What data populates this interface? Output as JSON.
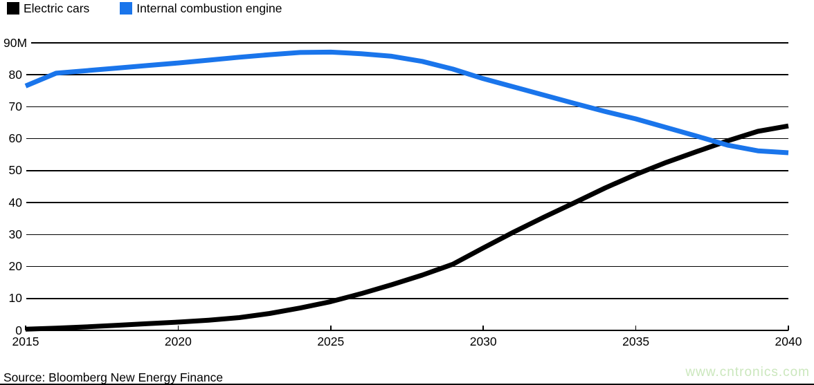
{
  "legend": {
    "items": [
      {
        "label": "Electric cars",
        "color": "#000000"
      },
      {
        "label": "Internal combustion engine",
        "color": "#1a75eb"
      }
    ]
  },
  "source_note": "Source: Bloomberg New Energy Finance",
  "watermark": "www.cntronics.com",
  "colors": {
    "electric_cars": "#000000",
    "internal_combustion": "#1a75eb",
    "gridline": "#000000",
    "watermark": "#cbe7bd",
    "background": "#ffffff"
  },
  "chart_data": {
    "type": "line",
    "title": "",
    "xlabel": "",
    "ylabel": "",
    "x": [
      2015,
      2016,
      2017,
      2018,
      2019,
      2020,
      2021,
      2022,
      2023,
      2024,
      2025,
      2026,
      2027,
      2028,
      2029,
      2030,
      2031,
      2032,
      2033,
      2034,
      2035,
      2036,
      2037,
      2038,
      2039,
      2040
    ],
    "series": [
      {
        "name": "Electric cars",
        "color": "#000000",
        "values": [
          0.4,
          0.7,
          1.1,
          1.6,
          2.1,
          2.6,
          3.2,
          4.0,
          5.3,
          7.0,
          9.0,
          11.5,
          14.3,
          17.3,
          20.7,
          25.8,
          30.8,
          35.5,
          40.0,
          44.6,
          48.8,
          52.6,
          56.0,
          59.3,
          62.3,
          64.0
        ]
      },
      {
        "name": "Internal combustion engine",
        "color": "#1a75eb",
        "values": [
          76.5,
          80.5,
          81.3,
          82.1,
          82.9,
          83.7,
          84.6,
          85.5,
          86.3,
          87.0,
          87.1,
          86.6,
          85.8,
          84.2,
          81.8,
          78.8,
          76.2,
          73.6,
          71.0,
          68.5,
          66.2,
          63.5,
          60.8,
          58.0,
          56.2,
          55.6
        ]
      }
    ],
    "ylim": [
      0,
      90
    ],
    "yticks": [
      {
        "value": 90,
        "label": "90M"
      },
      {
        "value": 80,
        "label": "80"
      },
      {
        "value": 70,
        "label": "70"
      },
      {
        "value": 60,
        "label": "60"
      },
      {
        "value": 50,
        "label": "50"
      },
      {
        "value": 40,
        "label": "40"
      },
      {
        "value": 30,
        "label": "30"
      },
      {
        "value": 20,
        "label": "20"
      },
      {
        "value": 10,
        "label": "10"
      },
      {
        "value": 0,
        "label": "0"
      }
    ],
    "xticks": [
      2015,
      2020,
      2025,
      2030,
      2035,
      2040
    ],
    "grid": true,
    "legend_position": "top-left"
  }
}
